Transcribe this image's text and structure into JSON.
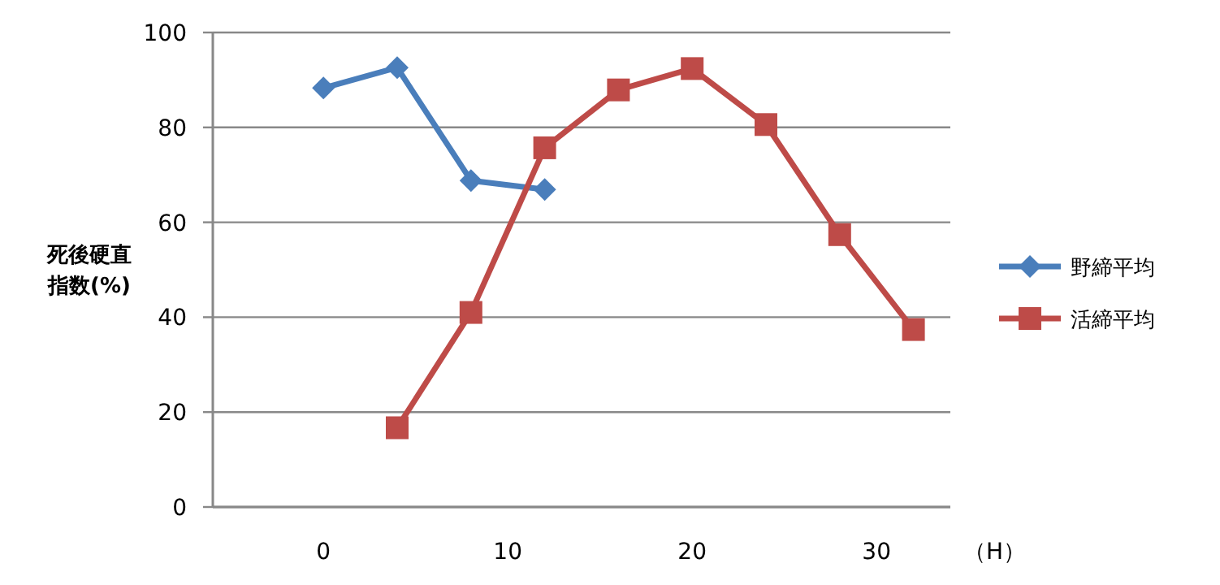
{
  "chart_data": {
    "type": "line",
    "xlabel": "（H）",
    "ylabel": "死後硬直指数(%)",
    "xlim": [
      -6,
      34
    ],
    "xticks": [
      0,
      10,
      20,
      30
    ],
    "ylim": [
      0,
      100
    ],
    "yticks": [
      0,
      20,
      40,
      60,
      80,
      100
    ],
    "grid": "y",
    "legend": "right",
    "series": [
      {
        "name": "野締平均",
        "color": "#4a7ebb",
        "marker": "diamond",
        "x": [
          0,
          4,
          8,
          12
        ],
        "values": [
          88.3,
          92.6,
          68.8,
          66.9
        ]
      },
      {
        "name": "活締平均",
        "color": "#be4b48",
        "marker": "square",
        "x": [
          4,
          8,
          12,
          16,
          20,
          24,
          28,
          32
        ],
        "values": [
          16.7,
          41,
          75.7,
          87.9,
          92.4,
          80.6,
          57.4,
          37.4
        ]
      }
    ]
  }
}
